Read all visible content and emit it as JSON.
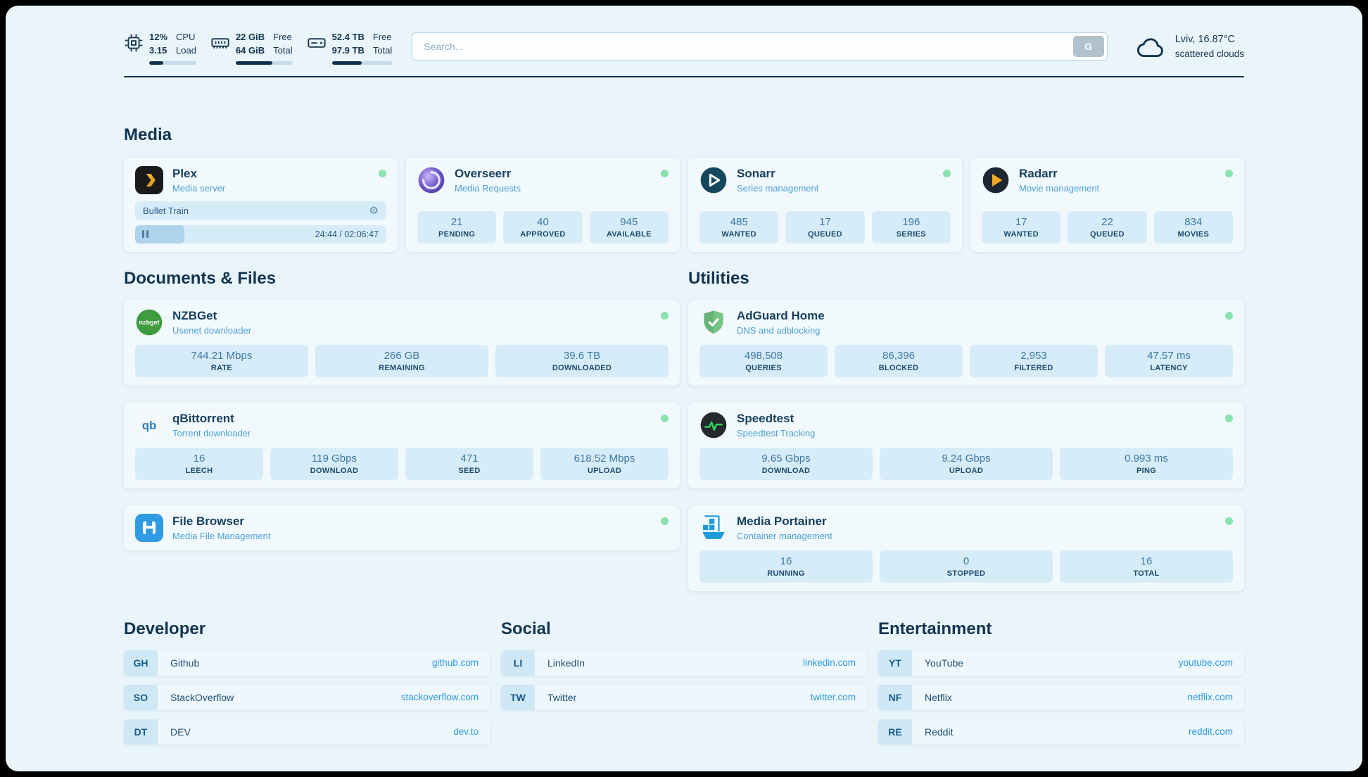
{
  "colors": {
    "status_green": "#8ae2ae",
    "link_blue": "#2e9be4",
    "dark_navy": "#14354f",
    "stat_box_blue": "#d6ecf9",
    "page_bg": "#e9f4fb"
  },
  "topbar": {
    "cpu": {
      "value": "12%",
      "secondary": "3.15",
      "label_top": "CPU",
      "label_bottom": "Load",
      "progress_pct": 30
    },
    "memory": {
      "value": "22 GiB",
      "secondary": "64 GiB",
      "label_top": "Free",
      "label_bottom": "Total",
      "progress_pct": 65
    },
    "disk": {
      "value": "52.4 TB",
      "secondary": "97.9 TB",
      "label_top": "Free",
      "label_bottom": "Total",
      "progress_pct": 50
    },
    "search": {
      "placeholder": "Search...",
      "button_label": "G"
    },
    "weather": {
      "location": "Lviv, 16.87°C",
      "condition": "scattered clouds"
    }
  },
  "sections": {
    "media": {
      "title": "Media",
      "plex": {
        "name": "Plex",
        "subtitle": "Media server",
        "now_playing": "Bullet Train",
        "time": "24:44 / 02:06:47",
        "progress_pct": 19.5
      },
      "overseerr": {
        "name": "Overseerr",
        "subtitle": "Media Requests",
        "stats": [
          {
            "value": "21",
            "label": "PENDING"
          },
          {
            "value": "40",
            "label": "APPROVED"
          },
          {
            "value": "945",
            "label": "AVAILABLE"
          }
        ]
      },
      "sonarr": {
        "name": "Sonarr",
        "subtitle": "Series management",
        "stats": [
          {
            "value": "485",
            "label": "WANTED"
          },
          {
            "value": "17",
            "label": "QUEUED"
          },
          {
            "value": "196",
            "label": "SERIES"
          }
        ]
      },
      "radarr": {
        "name": "Radarr",
        "subtitle": "Movie management",
        "stats": [
          {
            "value": "17",
            "label": "WANTED"
          },
          {
            "value": "22",
            "label": "QUEUED"
          },
          {
            "value": "834",
            "label": "MOVIES"
          }
        ]
      }
    },
    "documents": {
      "title": "Documents & Files",
      "nzbget": {
        "name": "NZBGet",
        "subtitle": "Usenet downloader",
        "stats": [
          {
            "value": "744.21 Mbps",
            "label": "RATE"
          },
          {
            "value": "266 GB",
            "label": "REMAINING"
          },
          {
            "value": "39.6 TB",
            "label": "DOWNLOADED"
          }
        ]
      },
      "qbittorrent": {
        "name": "qBittorrent",
        "subtitle": "Torrent downloader",
        "stats": [
          {
            "value": "16",
            "label": "LEECH"
          },
          {
            "value": "119 Gbps",
            "label": "DOWNLOAD"
          },
          {
            "value": "471",
            "label": "SEED"
          },
          {
            "value": "618.52 Mbps",
            "label": "UPLOAD"
          }
        ]
      },
      "filebrowser": {
        "name": "File Browser",
        "subtitle": "Media File Management"
      }
    },
    "utilities": {
      "title": "Utilities",
      "adguard": {
        "name": "AdGuard Home",
        "subtitle": "DNS and adblocking",
        "stats": [
          {
            "value": "498,508",
            "label": "QUERIES"
          },
          {
            "value": "86,396",
            "label": "BLOCKED"
          },
          {
            "value": "2,953",
            "label": "FILTERED"
          },
          {
            "value": "47.57 ms",
            "label": "LATENCY"
          }
        ]
      },
      "speedtest": {
        "name": "Speedtest",
        "subtitle": "Speedtest Tracking",
        "stats": [
          {
            "value": "9.65 Gbps",
            "label": "DOWNLOAD"
          },
          {
            "value": "9.24 Gbps",
            "label": "UPLOAD"
          },
          {
            "value": "0.993 ms",
            "label": "PING"
          }
        ]
      },
      "portainer": {
        "name": "Media Portainer",
        "subtitle": "Container management",
        "stats": [
          {
            "value": "16",
            "label": "RUNNING"
          },
          {
            "value": "0",
            "label": "STOPPED"
          },
          {
            "value": "16",
            "label": "TOTAL"
          }
        ]
      }
    },
    "developer": {
      "title": "Developer",
      "links": [
        {
          "abbr": "GH",
          "name": "Github",
          "url": "github.com"
        },
        {
          "abbr": "SO",
          "name": "StackOverflow",
          "url": "stackoverflow.com"
        },
        {
          "abbr": "DT",
          "name": "DEV",
          "url": "dev.to"
        }
      ]
    },
    "social": {
      "title": "Social",
      "links": [
        {
          "abbr": "LI",
          "name": "LinkedIn",
          "url": "linkedin.com"
        },
        {
          "abbr": "TW",
          "name": "Twitter",
          "url": "twitter.com"
        }
      ]
    },
    "entertainment": {
      "title": "Entertainment",
      "links": [
        {
          "abbr": "YT",
          "name": "YouTube",
          "url": "youtube.com"
        },
        {
          "abbr": "NF",
          "name": "Netflix",
          "url": "netflix.com"
        },
        {
          "abbr": "RE",
          "name": "Reddit",
          "url": "reddit.com"
        }
      ]
    }
  }
}
